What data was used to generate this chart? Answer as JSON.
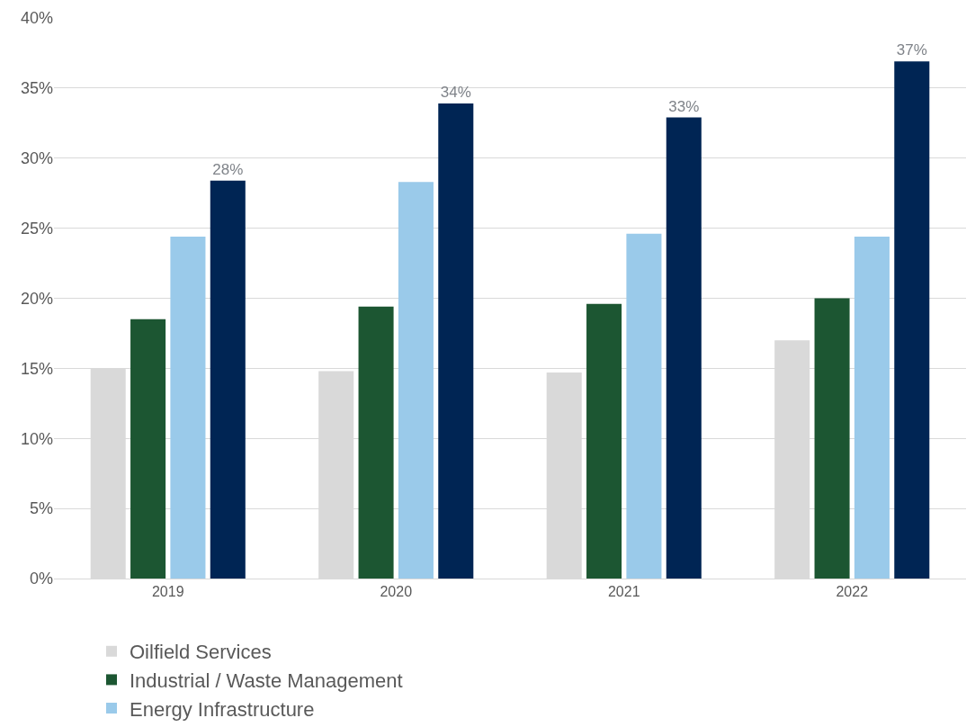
{
  "chart_data": {
    "type": "bar",
    "categories": [
      "2019",
      "2020",
      "2021",
      "2022"
    ],
    "series": [
      {
        "name": "Oilfield Services",
        "color": "#d9d9d9",
        "values": [
          15.0,
          14.8,
          14.7,
          17.0
        ]
      },
      {
        "name": "Industrial / Waste Management",
        "color": "#1c5632",
        "values": [
          18.5,
          19.4,
          19.6,
          20.0
        ]
      },
      {
        "name": "Energy Infrastructure",
        "color": "#9acaea",
        "values": [
          24.4,
          28.3,
          24.6,
          24.4
        ]
      },
      {
        "color": "#002554",
        "values": [
          28.4,
          33.9,
          32.9,
          36.9
        ],
        "value_labels": [
          "28%",
          "34%",
          "33%",
          "37%"
        ]
      }
    ],
    "ylim": [
      0,
      40
    ],
    "yticks": [
      {
        "value": 0,
        "label": "0%"
      },
      {
        "value": 5,
        "label": "5%"
      },
      {
        "value": 10,
        "label": "10%"
      },
      {
        "value": 15,
        "label": "15%"
      },
      {
        "value": 20,
        "label": "20%"
      },
      {
        "value": 25,
        "label": "25%"
      },
      {
        "value": 30,
        "label": "30%"
      },
      {
        "value": 35,
        "label": "35%"
      },
      {
        "value": 40,
        "label": "40%"
      }
    ],
    "grid": "y",
    "legend": "bottom"
  }
}
